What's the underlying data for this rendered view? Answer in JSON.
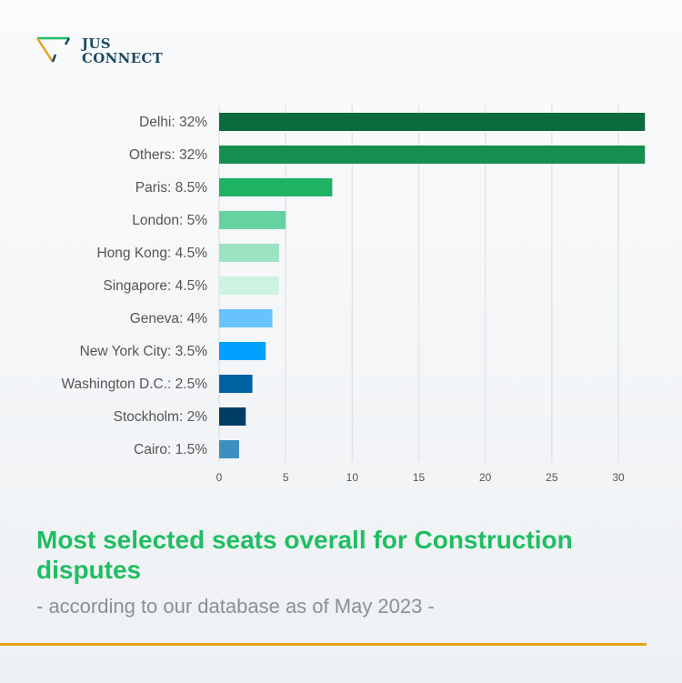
{
  "brand": {
    "name_line1": "JUS",
    "name_line2": "CONNECT"
  },
  "chart_data": {
    "type": "bar",
    "orientation": "horizontal",
    "categories": [
      "Delhi: 32%",
      "Others: 32%",
      "Paris: 8.5%",
      "London: 5%",
      "Hong Kong: 4.5%",
      "Singapore: 4.5%",
      "Geneva: 4%",
      "New York City: 3.5%",
      "Washington D.C.: 2.5%",
      "Stockholm: 2%",
      "Cairo: 1.5%"
    ],
    "values": [
      32,
      32,
      8.5,
      5,
      4.5,
      4.5,
      4,
      3.5,
      2.5,
      2,
      1.5
    ],
    "colors": [
      "#0b6b3c",
      "#148f50",
      "#1fb264",
      "#65d3a0",
      "#9be3c2",
      "#cdf2df",
      "#66c3ff",
      "#00a0ff",
      "#0062a0",
      "#003e66",
      "#3d8fc1"
    ],
    "xticks": [
      0,
      5,
      10,
      15,
      20,
      25,
      30
    ],
    "xlim": [
      0,
      32
    ],
    "grid": true,
    "title": "Most selected seats overall for Construction disputes",
    "subtitle": "- according to our database as of May 2023 -"
  },
  "colors": {
    "title": "#1fbe62",
    "rule": "#e6a21b",
    "brand": "#1d4a63"
  }
}
